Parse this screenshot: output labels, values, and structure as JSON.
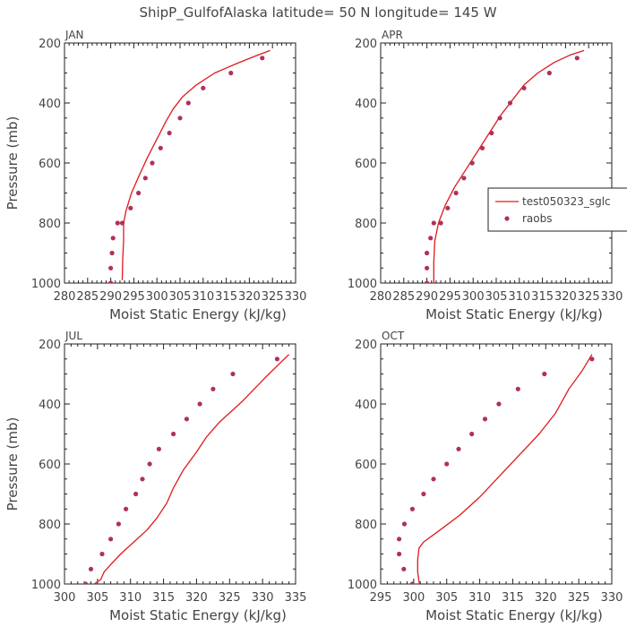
{
  "title": "ShipP_GulfofAlaska   latitude= 50 N longitude= 145 W",
  "colors": {
    "model": "#e0191c",
    "obs": "#b0305c",
    "axis": "#222222",
    "text": "#444444"
  },
  "legend": {
    "model_label": "test050323_sglc",
    "obs_label": "raobs",
    "panel": "APR"
  },
  "chart_data": [
    {
      "type": "line",
      "panel": "JAN",
      "xlabel": "Moist Static Energy (kJ/kg)",
      "ylabel": "Pressure (mb)",
      "xlim": [
        280,
        330
      ],
      "xticks": [
        280,
        285,
        290,
        295,
        300,
        305,
        310,
        315,
        320,
        325,
        330
      ],
      "ylim": [
        1000,
        200
      ],
      "yticks": [
        200,
        400,
        600,
        800,
        1000
      ],
      "series": [
        {
          "name": "test050323_sglc",
          "style": "line",
          "x": [
            292.5,
            292.6,
            292.8,
            292.8,
            293.3,
            294.5,
            296.2,
            298.0,
            300.0,
            302.0,
            303.5,
            305.5,
            308.5,
            312.5,
            317.0,
            321.0,
            324.5
          ],
          "y": [
            990,
            920,
            860,
            800,
            760,
            700,
            640,
            580,
            520,
            460,
            420,
            380,
            340,
            300,
            270,
            245,
            225
          ]
        },
        {
          "name": "raobs",
          "style": "markers",
          "x": [
            290.0,
            290.0,
            290.3,
            290.5,
            291.5,
            292.5,
            294.3,
            296.0,
            297.5,
            299.0,
            300.8,
            302.7,
            305.0,
            306.8,
            310.0,
            316.0,
            322.8
          ],
          "y": [
            1000,
            950,
            900,
            850,
            800,
            800,
            750,
            700,
            650,
            600,
            550,
            500,
            450,
            400,
            350,
            300,
            250
          ]
        }
      ]
    },
    {
      "type": "line",
      "panel": "APR",
      "xlabel": "Moist Static Energy (kJ/kg)",
      "ylabel": "",
      "xlim": [
        280,
        330
      ],
      "xticks": [
        280,
        285,
        290,
        295,
        300,
        305,
        310,
        315,
        320,
        325,
        330
      ],
      "ylim": [
        1000,
        200
      ],
      "yticks": [
        200,
        400,
        600,
        800,
        1000
      ],
      "series": [
        {
          "name": "test050323_sglc",
          "style": "line",
          "x": [
            291.5,
            291.5,
            291.7,
            292.5,
            294.0,
            296.0,
            298.5,
            301.0,
            303.5,
            306.0,
            308.5,
            311.0,
            314.0,
            317.5,
            321.0,
            324.0
          ],
          "y": [
            1005,
            930,
            860,
            800,
            740,
            680,
            620,
            560,
            500,
            440,
            390,
            340,
            300,
            265,
            240,
            225
          ]
        },
        {
          "name": "raobs",
          "style": "markers",
          "x": [
            290.0,
            290.0,
            290.0,
            290.8,
            291.5,
            293.0,
            294.5,
            296.3,
            298.0,
            299.8,
            302.0,
            304.0,
            305.8,
            308.0,
            311.0,
            316.5,
            322.5
          ],
          "y": [
            1000,
            950,
            900,
            850,
            800,
            800,
            750,
            700,
            650,
            600,
            550,
            500,
            450,
            400,
            350,
            300,
            250
          ]
        }
      ]
    },
    {
      "type": "line",
      "panel": "JUL",
      "xlabel": "Moist Static Energy (kJ/kg)",
      "ylabel": "Pressure (mb)",
      "xlim": [
        300,
        335
      ],
      "xticks": [
        300,
        305,
        310,
        315,
        320,
        325,
        330,
        335
      ],
      "ylim": [
        1000,
        200
      ],
      "yticks": [
        200,
        400,
        600,
        800,
        1000
      ],
      "series": [
        {
          "name": "test050323_sglc",
          "style": "line",
          "x": [
            303.5,
            304.5,
            305.5,
            306.0,
            306.8,
            308.5,
            310.5,
            312.5,
            314.0,
            315.5,
            316.5,
            318.0,
            320.0,
            321.5,
            323.5,
            327.0,
            330.5,
            334.0
          ],
          "y": [
            1015,
            1000,
            985,
            960,
            940,
            900,
            860,
            820,
            780,
            730,
            680,
            620,
            560,
            510,
            460,
            390,
            310,
            235
          ]
        },
        {
          "name": "raobs",
          "style": "markers",
          "x": [
            303.2,
            304.0,
            305.7,
            307.0,
            308.2,
            309.3,
            310.8,
            311.8,
            312.9,
            314.3,
            316.5,
            318.5,
            320.5,
            322.5,
            325.5,
            332.2
          ],
          "y": [
            1000,
            950,
            900,
            850,
            800,
            750,
            700,
            650,
            600,
            550,
            500,
            450,
            400,
            350,
            300,
            250
          ]
        }
      ]
    },
    {
      "type": "line",
      "panel": "OCT",
      "xlabel": "Moist Static Energy (kJ/kg)",
      "ylabel": "",
      "xlim": [
        295,
        330
      ],
      "xticks": [
        295,
        300,
        305,
        310,
        315,
        320,
        325,
        330
      ],
      "ylim": [
        1000,
        200
      ],
      "yticks": [
        200,
        400,
        600,
        800,
        1000
      ],
      "series": [
        {
          "name": "test050323_sglc",
          "style": "line",
          "x": [
            301.0,
            300.6,
            300.6,
            300.8,
            301.5,
            304.0,
            307.0,
            310.0,
            313.0,
            316.0,
            319.0,
            321.5,
            323.5,
            325.5,
            327.0
          ],
          "y": [
            1020,
            960,
            920,
            880,
            860,
            820,
            770,
            710,
            640,
            570,
            500,
            430,
            350,
            290,
            235
          ]
        },
        {
          "name": "raobs",
          "style": "markers",
          "x": [
            299.8,
            298.5,
            297.8,
            297.8,
            298.6,
            299.8,
            301.5,
            303.0,
            305.0,
            306.8,
            308.8,
            310.8,
            312.9,
            315.8,
            319.8,
            327.0
          ],
          "y": [
            1000,
            950,
            900,
            850,
            800,
            750,
            700,
            650,
            600,
            550,
            500,
            450,
            400,
            350,
            300,
            250
          ]
        }
      ]
    }
  ]
}
